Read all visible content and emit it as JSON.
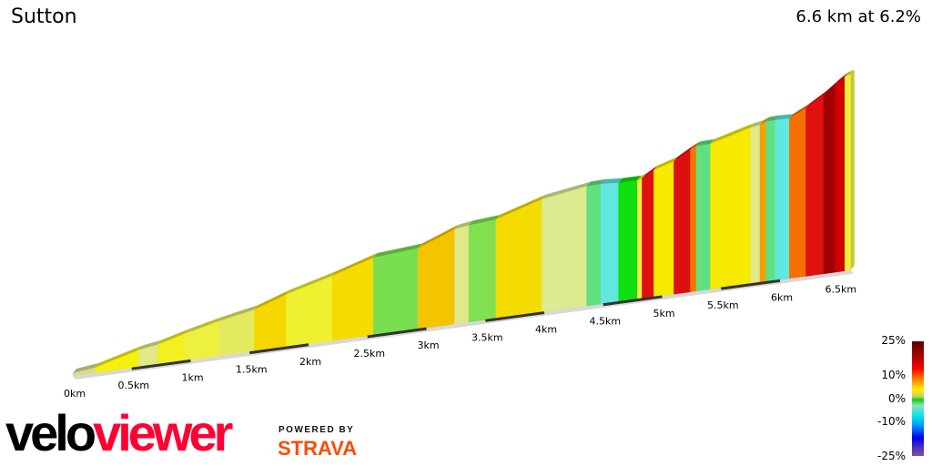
{
  "title": "Sutton",
  "summary": "6.6 km at 6.2%",
  "chart_data": {
    "type": "area",
    "xlabel": "",
    "ylabel": "",
    "distance_km": 6.6,
    "average_gradient_pct": 6.2,
    "x_ticks": [
      "0km",
      "0.5km",
      "1km",
      "1.5km",
      "2km",
      "2.5km",
      "3km",
      "3.5km",
      "4km",
      "4.5km",
      "5km",
      "5.5km",
      "6km",
      "6.5km"
    ],
    "segments": [
      {
        "start_km": 0.0,
        "end_km": 0.19,
        "gradient_pct": 3,
        "color": "#d8dc90"
      },
      {
        "start_km": 0.19,
        "end_km": 0.56,
        "gradient_pct": 7,
        "color": "#f5f010"
      },
      {
        "start_km": 0.56,
        "end_km": 0.72,
        "gradient_pct": 4,
        "color": "#e0e888"
      },
      {
        "start_km": 0.72,
        "end_km": 0.95,
        "gradient_pct": 7,
        "color": "#f2f020"
      },
      {
        "start_km": 0.95,
        "end_km": 1.24,
        "gradient_pct": 6,
        "color": "#eef040"
      },
      {
        "start_km": 1.24,
        "end_km": 1.54,
        "gradient_pct": 5,
        "color": "#e4ea60"
      },
      {
        "start_km": 1.54,
        "end_km": 1.81,
        "gradient_pct": 9,
        "color": "#f5d800"
      },
      {
        "start_km": 1.81,
        "end_km": 2.2,
        "gradient_pct": 7,
        "color": "#eef030"
      },
      {
        "start_km": 2.2,
        "end_km": 2.55,
        "gradient_pct": 8,
        "color": "#f5dc00"
      },
      {
        "start_km": 2.55,
        "end_km": 2.93,
        "gradient_pct": 2,
        "color": "#78e050"
      },
      {
        "start_km": 2.93,
        "end_km": 3.24,
        "gradient_pct": 10,
        "color": "#f5c400"
      },
      {
        "start_km": 3.24,
        "end_km": 3.36,
        "gradient_pct": 4,
        "color": "#e0e888"
      },
      {
        "start_km": 3.36,
        "end_km": 3.59,
        "gradient_pct": 2,
        "color": "#80e050"
      },
      {
        "start_km": 3.59,
        "end_km": 3.98,
        "gradient_pct": 8,
        "color": "#f5dc00"
      },
      {
        "start_km": 3.98,
        "end_km": 4.36,
        "gradient_pct": 4,
        "color": "#dcea90"
      },
      {
        "start_km": 4.36,
        "end_km": 4.48,
        "gradient_pct": 1,
        "color": "#60e080"
      },
      {
        "start_km": 4.48,
        "end_km": 4.63,
        "gradient_pct": -2,
        "color": "#60e8e0"
      },
      {
        "start_km": 4.63,
        "end_km": 4.79,
        "gradient_pct": 0,
        "color": "#10e010"
      },
      {
        "start_km": 4.79,
        "end_km": 4.83,
        "gradient_pct": 6,
        "color": "#f0f040"
      },
      {
        "start_km": 4.83,
        "end_km": 4.93,
        "gradient_pct": 15,
        "color": "#e01010"
      },
      {
        "start_km": 4.93,
        "end_km": 5.1,
        "gradient_pct": 8,
        "color": "#f5ea00"
      },
      {
        "start_km": 5.1,
        "end_km": 5.24,
        "gradient_pct": 15,
        "color": "#dd1010"
      },
      {
        "start_km": 5.24,
        "end_km": 5.29,
        "gradient_pct": 12,
        "color": "#f57800"
      },
      {
        "start_km": 5.29,
        "end_km": 5.41,
        "gradient_pct": 1,
        "color": "#60e080"
      },
      {
        "start_km": 5.41,
        "end_km": 5.75,
        "gradient_pct": 7,
        "color": "#f5ea00"
      },
      {
        "start_km": 5.75,
        "end_km": 5.83,
        "gradient_pct": 4,
        "color": "#e0e888"
      },
      {
        "start_km": 5.83,
        "end_km": 5.88,
        "gradient_pct": 11,
        "color": "#f5a000"
      },
      {
        "start_km": 5.88,
        "end_km": 5.96,
        "gradient_pct": 1,
        "color": "#60e080"
      },
      {
        "start_km": 5.96,
        "end_km": 6.08,
        "gradient_pct": -1,
        "color": "#60e8e0"
      },
      {
        "start_km": 6.08,
        "end_km": 6.22,
        "gradient_pct": 13,
        "color": "#f57000"
      },
      {
        "start_km": 6.22,
        "end_km": 6.37,
        "gradient_pct": 16,
        "color": "#e01010"
      },
      {
        "start_km": 6.37,
        "end_km": 6.47,
        "gradient_pct": 20,
        "color": "#a00000"
      },
      {
        "start_km": 6.47,
        "end_km": 6.55,
        "gradient_pct": 18,
        "color": "#d00000"
      },
      {
        "start_km": 6.55,
        "end_km": 6.6,
        "gradient_pct": 6,
        "color": "#f0f040"
      }
    ],
    "legend": {
      "labels": [
        "25%",
        "10%",
        "0%",
        "-10%",
        "-25%"
      ],
      "range": [
        -25,
        25
      ]
    }
  },
  "branding": {
    "logo_velo": "velo",
    "logo_viewer": "viewer",
    "powered_by": "POWERED BY",
    "strava": "STRAVA",
    "strava_color": "#fc4c02",
    "viewer_color": "#ff0033"
  }
}
